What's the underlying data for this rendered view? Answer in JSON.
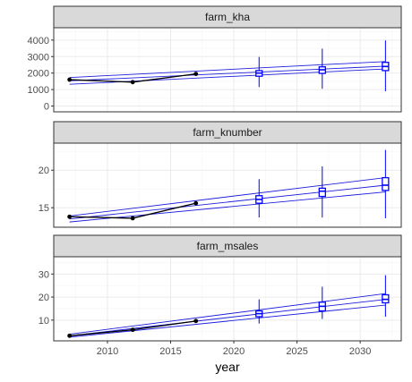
{
  "chart_data": {
    "type": "line",
    "layout": "faceted-vertical",
    "xlabel": "year",
    "xlim": [
      2005.75,
      2033.25
    ],
    "x_ticks": [
      2010,
      2015,
      2020,
      2025,
      2030
    ],
    "grid": true,
    "legend": "none",
    "colors": {
      "observed": "#000000",
      "projection": "#1f1fdd",
      "box": "#0000ff",
      "panel_border": "#333333",
      "strip_fill": "#d9d9d9",
      "grid_major": "#ebebeb",
      "grid_minor": "#f5f5f5"
    },
    "facets": [
      {
        "title": "farm_kha",
        "ylim": [
          -350,
          4750
        ],
        "y_ticks": [
          0,
          1000,
          2000,
          3000,
          4000
        ],
        "observed": {
          "x": [
            2007,
            2012,
            2017
          ],
          "y": [
            1600,
            1450,
            1950
          ]
        },
        "bands": [
          {
            "x": [
              2007,
              2032
            ],
            "y": [
              1320,
              2250
            ]
          },
          {
            "x": [
              2007,
              2032
            ],
            "y": [
              1530,
              2420
            ]
          },
          {
            "x": [
              2007,
              2032
            ],
            "y": [
              1730,
              2700
            ]
          }
        ],
        "boxes": [
          {
            "x": 2022,
            "min": 1150,
            "q1": 1810,
            "median": 2000,
            "q3": 2150,
            "max": 2980
          },
          {
            "x": 2027,
            "min": 1050,
            "q1": 1980,
            "median": 2200,
            "q3": 2380,
            "max": 3480
          },
          {
            "x": 2032,
            "min": 900,
            "q1": 2150,
            "median": 2400,
            "q3": 2650,
            "max": 3980
          }
        ]
      },
      {
        "title": "farm_knumber",
        "ylim": [
          12.4,
          23.6
        ],
        "y_ticks": [
          15,
          20
        ],
        "observed": {
          "x": [
            2007,
            2012,
            2017
          ],
          "y": [
            13.8,
            13.6,
            15.6
          ]
        },
        "bands": [
          {
            "x": [
              2007,
              2032
            ],
            "y": [
              13.1,
              17.1
            ]
          },
          {
            "x": [
              2007,
              2032
            ],
            "y": [
              13.5,
              18.0
            ]
          },
          {
            "x": [
              2007,
              2032
            ],
            "y": [
              13.9,
              19.0
            ]
          }
        ],
        "boxes": [
          {
            "x": 2022,
            "min": 13.7,
            "q1": 15.6,
            "median": 16.1,
            "q3": 16.6,
            "max": 18.8
          },
          {
            "x": 2027,
            "min": 13.7,
            "q1": 16.5,
            "median": 17.2,
            "q3": 17.6,
            "max": 20.5
          },
          {
            "x": 2032,
            "min": 13.6,
            "q1": 17.3,
            "median": 18.0,
            "q3": 19.0,
            "max": 22.7
          }
        ]
      },
      {
        "title": "farm_msales",
        "ylim": [
          1.0,
          37.5
        ],
        "y_ticks": [
          10,
          20,
          30
        ],
        "observed": {
          "x": [
            2007,
            2012,
            2017
          ],
          "y": [
            3.2,
            5.8,
            9.6
          ]
        },
        "bands": [
          {
            "x": [
              2007,
              2032
            ],
            "y": [
              2.6,
              16.5
            ]
          },
          {
            "x": [
              2007,
              2032
            ],
            "y": [
              3.2,
              19.0
            ]
          },
          {
            "x": [
              2007,
              2032
            ],
            "y": [
              3.9,
              21.5
            ]
          }
        ],
        "boxes": [
          {
            "x": 2022,
            "min": 8.5,
            "q1": 11.5,
            "median": 12.8,
            "q3": 14.0,
            "max": 19.0
          },
          {
            "x": 2027,
            "min": 10.5,
            "q1": 14.0,
            "median": 16.0,
            "q3": 17.8,
            "max": 24.5
          },
          {
            "x": 2032,
            "min": 11.5,
            "q1": 17.5,
            "median": 19.0,
            "q3": 21.0,
            "max": 29.5
          }
        ]
      }
    ]
  }
}
